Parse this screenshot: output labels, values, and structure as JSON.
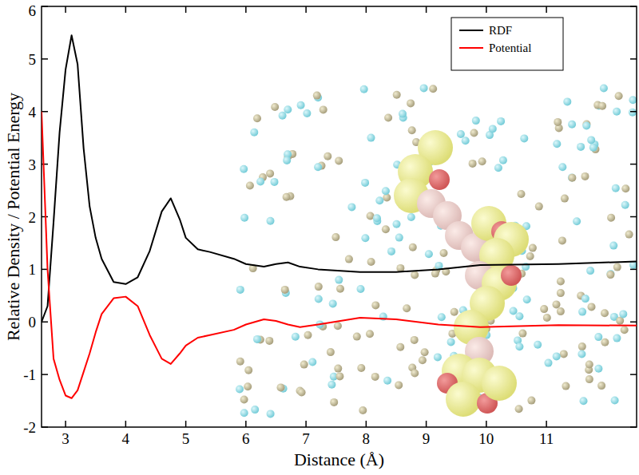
{
  "chart_data": {
    "type": "line",
    "x_label": "Distance (Å)",
    "y_label": "Relative Density / Potential Energy",
    "x": [
      2.6,
      2.7,
      2.8,
      2.9,
      3.0,
      3.1,
      3.2,
      3.3,
      3.4,
      3.5,
      3.6,
      3.8,
      4.0,
      4.2,
      4.4,
      4.6,
      4.75,
      4.9,
      5.0,
      5.2,
      5.4,
      5.8,
      6.0,
      6.3,
      6.5,
      6.7,
      6.9,
      7.2,
      7.9,
      8.5,
      9.2,
      9.9,
      11.2,
      12.5
    ],
    "series": [
      {
        "name": "RDF",
        "color": "#000000",
        "values": [
          0,
          0.3,
          1.9,
          3.6,
          4.8,
          5.45,
          4.9,
          3.3,
          2.2,
          1.6,
          1.2,
          0.76,
          0.72,
          0.85,
          1.35,
          2.1,
          2.35,
          1.95,
          1.6,
          1.38,
          1.33,
          1.2,
          1.1,
          1.05,
          1.1,
          1.13,
          1.05,
          1.0,
          0.95,
          0.95,
          1.0,
          1.08,
          1.1,
          1.15
        ]
      },
      {
        "name": "Potential",
        "color": "#ff0000",
        "values": [
          4.0,
          1.0,
          -0.7,
          -1.1,
          -1.4,
          -1.45,
          -1.3,
          -0.95,
          -0.6,
          -0.2,
          0.15,
          0.45,
          0.48,
          0.3,
          -0.25,
          -0.7,
          -0.8,
          -0.6,
          -0.45,
          -0.3,
          -0.25,
          -0.15,
          -0.05,
          0.05,
          0.02,
          -0.05,
          -0.1,
          -0.05,
          0.08,
          0.05,
          -0.05,
          -0.1,
          -0.06,
          -0.07
        ]
      }
    ],
    "xlim": [
      2.6,
      12.5
    ],
    "ylim": [
      -2,
      6
    ],
    "xticks": [
      3,
      4,
      5,
      6,
      7,
      8,
      9,
      10,
      11
    ],
    "yticks": [
      -2,
      -1,
      0,
      1,
      2,
      3,
      4,
      5,
      6
    ],
    "legend": "upper right",
    "grid": false
  }
}
